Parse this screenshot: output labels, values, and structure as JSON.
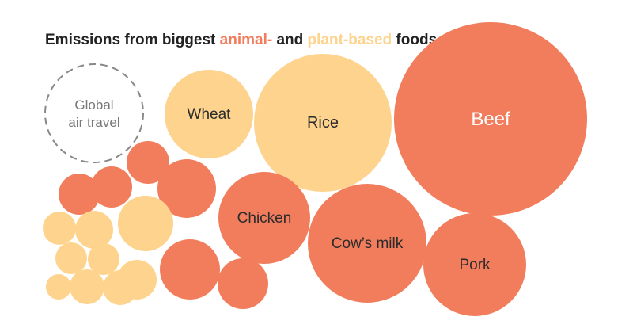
{
  "colors": {
    "animal": "#f27d5d",
    "plant": "#fdd38d",
    "reference": "#888888",
    "title": "#222222",
    "label_dark": "#2b2b2b",
    "label_light": "#ffffff"
  },
  "chart_data": {
    "type": "bubble",
    "title": {
      "prefix": "Emissions from biggest ",
      "animal": "animal-",
      "middle": " and ",
      "plant": "plant-based",
      "suffix": " foods"
    },
    "bubbles": [
      {
        "id": "global-air-travel",
        "label": [
          "Global",
          "air travel"
        ],
        "group": "reference"
      },
      {
        "id": "beef",
        "label": [
          "Beef"
        ],
        "group": "animal"
      },
      {
        "id": "rice",
        "label": [
          "Rice"
        ],
        "group": "plant"
      },
      {
        "id": "wheat",
        "label": [
          "Wheat"
        ],
        "group": "plant"
      },
      {
        "id": "chicken",
        "label": [
          "Chicken"
        ],
        "group": "animal"
      },
      {
        "id": "cows-milk",
        "label": [
          "Cow’s milk"
        ],
        "group": "animal"
      },
      {
        "id": "pork",
        "label": [
          "Pork"
        ],
        "group": "animal"
      },
      {
        "id": "animal-small-1",
        "label": [],
        "group": "animal"
      },
      {
        "id": "animal-small-2",
        "label": [],
        "group": "animal"
      },
      {
        "id": "animal-small-3",
        "label": [],
        "group": "animal"
      },
      {
        "id": "animal-small-4",
        "label": [],
        "group": "animal"
      },
      {
        "id": "animal-small-5",
        "label": [],
        "group": "animal"
      },
      {
        "id": "animal-small-6",
        "label": [],
        "group": "animal"
      },
      {
        "id": "plant-small-1",
        "label": [],
        "group": "plant"
      },
      {
        "id": "plant-small-2",
        "label": [],
        "group": "plant"
      },
      {
        "id": "plant-small-3",
        "label": [],
        "group": "plant"
      },
      {
        "id": "plant-small-4",
        "label": [],
        "group": "plant"
      },
      {
        "id": "plant-small-5",
        "label": [],
        "group": "plant"
      },
      {
        "id": "plant-small-6",
        "label": [],
        "group": "plant"
      },
      {
        "id": "plant-small-7",
        "label": [],
        "group": "plant"
      },
      {
        "id": "plant-small-8",
        "label": [],
        "group": "plant"
      },
      {
        "id": "plant-small-9",
        "label": [],
        "group": "plant"
      }
    ]
  }
}
